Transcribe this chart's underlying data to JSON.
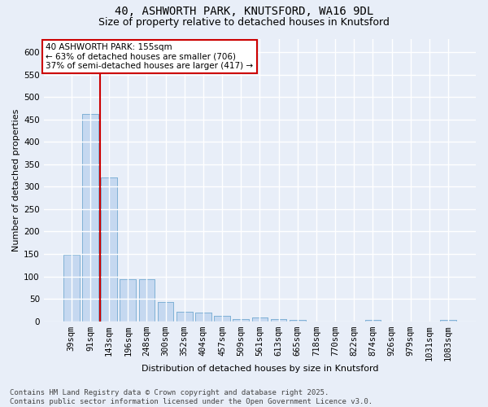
{
  "title_line1": "40, ASHWORTH PARK, KNUTSFORD, WA16 9DL",
  "title_line2": "Size of property relative to detached houses in Knutsford",
  "xlabel": "Distribution of detached houses by size in Knutsford",
  "ylabel": "Number of detached properties",
  "categories": [
    "39sqm",
    "91sqm",
    "143sqm",
    "196sqm",
    "248sqm",
    "300sqm",
    "352sqm",
    "404sqm",
    "457sqm",
    "509sqm",
    "561sqm",
    "613sqm",
    "665sqm",
    "718sqm",
    "770sqm",
    "822sqm",
    "874sqm",
    "926sqm",
    "979sqm",
    "1031sqm",
    "1083sqm"
  ],
  "values": [
    148,
    463,
    320,
    93,
    93,
    43,
    22,
    20,
    12,
    5,
    8,
    5,
    3,
    0,
    0,
    0,
    4,
    0,
    0,
    0,
    4
  ],
  "bar_color": "#c5d8f0",
  "bar_edgecolor": "#7bafd4",
  "vline_x": 1.5,
  "vline_color": "#cc0000",
  "annotation_text": "40 ASHWORTH PARK: 155sqm\n← 63% of detached houses are smaller (706)\n37% of semi-detached houses are larger (417) →",
  "annotation_box_edgecolor": "#cc0000",
  "annotation_box_facecolor": "#ffffff",
  "ylim": [
    0,
    630
  ],
  "yticks": [
    0,
    50,
    100,
    150,
    200,
    250,
    300,
    350,
    400,
    450,
    500,
    550,
    600
  ],
  "background_color": "#e8eef8",
  "grid_color": "#ffffff",
  "footer_text": "Contains HM Land Registry data © Crown copyright and database right 2025.\nContains public sector information licensed under the Open Government Licence v3.0.",
  "title_fontsize": 10,
  "subtitle_fontsize": 9,
  "xlabel_fontsize": 8,
  "ylabel_fontsize": 8,
  "tick_fontsize": 7.5,
  "footer_fontsize": 6.5,
  "annot_fontsize": 7.5
}
